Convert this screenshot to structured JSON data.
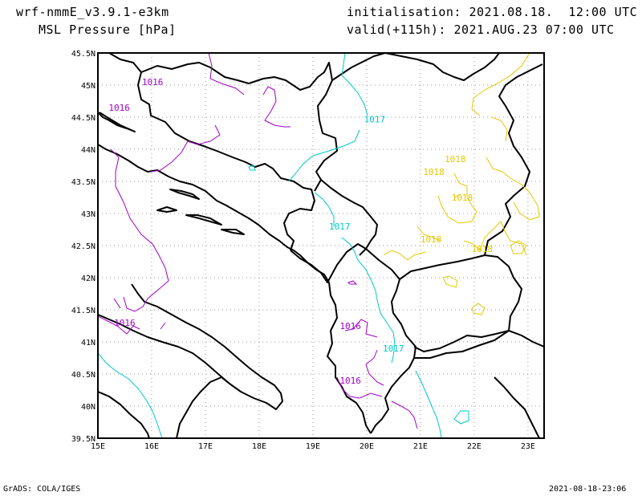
{
  "header": {
    "model": "wrf-nmmE_v3.9.1-e3km",
    "field": "MSL Pressure [hPa]",
    "init_label": "initialisation:",
    "init_value": "2021.08.18.  12:00 UTC",
    "valid_label": "valid(+115h):",
    "valid_value": "2021.AUG.23 07:00 UTC"
  },
  "footer": {
    "left": "GrADS: COLA/IGES",
    "right": "2021-08-18-23:06"
  },
  "map": {
    "lon_labels": [
      "15E",
      "16E",
      "17E",
      "18E",
      "19E",
      "20E",
      "21E",
      "22E",
      "23E"
    ],
    "lat_labels": [
      "45.5N",
      "45N",
      "44.5N",
      "44N",
      "43.5N",
      "43N",
      "42.5N",
      "42N",
      "41.5N",
      "41N",
      "40.5N",
      "40N",
      "39.5N"
    ],
    "colors": {
      "coast": "#000000",
      "iso_1016": "#a000c8",
      "iso_1017": "#00c8c8",
      "iso_1018": "#e6c800",
      "grid": "#999999"
    },
    "isobar_labels": [
      {
        "text": "1016",
        "lon": 15.82,
        "lat": 45.0,
        "class": "iso_1016"
      },
      {
        "text": "1016",
        "lon": 15.2,
        "lat": 44.6,
        "class": "iso_1016"
      },
      {
        "text": "1017",
        "lon": 19.95,
        "lat": 44.42,
        "class": "iso_1017"
      },
      {
        "text": "1018",
        "lon": 21.05,
        "lat": 43.6,
        "class": "iso_1018"
      },
      {
        "text": "1018",
        "lon": 21.45,
        "lat": 43.8,
        "class": "iso_1018"
      },
      {
        "text": "1018",
        "lon": 21.58,
        "lat": 43.2,
        "class": "iso_1018"
      },
      {
        "text": "1017",
        "lon": 19.3,
        "lat": 42.75,
        "class": "iso_1017"
      },
      {
        "text": "1018",
        "lon": 21.0,
        "lat": 42.55,
        "class": "iso_1018"
      },
      {
        "text": "1018",
        "lon": 21.95,
        "lat": 42.4,
        "class": "iso_1018"
      },
      {
        "text": "1016",
        "lon": 15.3,
        "lat": 41.25,
        "class": "iso_1016"
      },
      {
        "text": "1016",
        "lon": 19.5,
        "lat": 41.2,
        "class": "iso_1016"
      },
      {
        "text": "1017",
        "lon": 20.3,
        "lat": 40.85,
        "class": "iso_1017"
      },
      {
        "text": "1016",
        "lon": 19.5,
        "lat": 40.35,
        "class": "iso_1016"
      }
    ]
  }
}
